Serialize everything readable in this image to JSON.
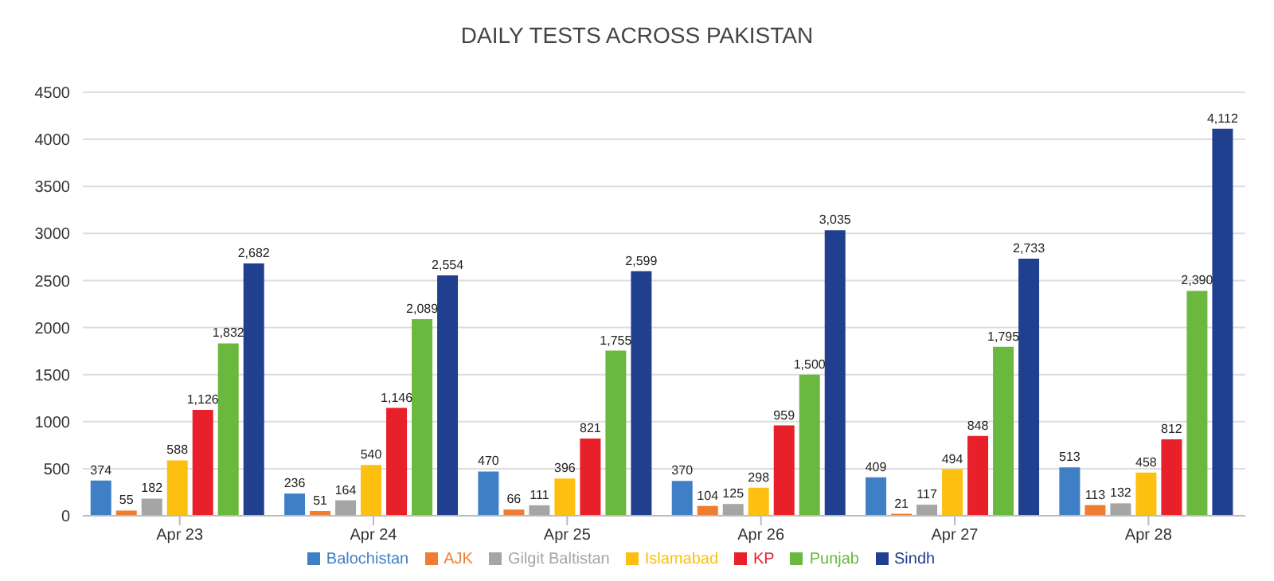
{
  "chart_data": {
    "type": "bar",
    "title": "DAILY TESTS ACROSS PAKISTAN",
    "categories": [
      "Apr 23",
      "Apr 24",
      "Apr 25",
      "Apr 26",
      "Apr 27",
      "Apr 28"
    ],
    "series": [
      {
        "name": "Balochistan",
        "color": "#3f7fc6",
        "values": [
          374,
          236,
          470,
          370,
          409,
          513
        ],
        "value_labels": [
          "374",
          "236",
          "470",
          "370",
          "409",
          "513"
        ]
      },
      {
        "name": "AJK",
        "color": "#ee7d31",
        "values": [
          55,
          51,
          66,
          104,
          21,
          113
        ],
        "value_labels": [
          "55",
          "51",
          "66",
          "104",
          "21",
          "113"
        ]
      },
      {
        "name": "Gilgit Baltistan",
        "color": "#a5a5a5",
        "values": [
          182,
          164,
          111,
          125,
          117,
          132
        ],
        "value_labels": [
          "182",
          "164",
          "111",
          "125",
          "117",
          "132"
        ]
      },
      {
        "name": "Islamabad",
        "color": "#fdc010",
        "values": [
          588,
          540,
          396,
          298,
          494,
          458
        ],
        "value_labels": [
          "588",
          "540",
          "396",
          "298",
          "494",
          "458"
        ]
      },
      {
        "name": "KP",
        "color": "#e8202a",
        "values": [
          1126,
          1146,
          821,
          959,
          848,
          812
        ],
        "value_labels": [
          "1,126",
          "1,146",
          "821",
          "959",
          "848",
          "812"
        ]
      },
      {
        "name": "Punjab",
        "color": "#6ab83d",
        "values": [
          1832,
          2089,
          1755,
          1500,
          1795,
          2390
        ],
        "value_labels": [
          "1,832",
          "2,089",
          "1,755",
          "1,500",
          "1,795",
          "2,390"
        ]
      },
      {
        "name": "Sindh",
        "color": "#213f8f",
        "values": [
          2682,
          2554,
          2599,
          3035,
          2733,
          4112
        ],
        "value_labels": [
          "2,682",
          "2,554",
          "2,599",
          "3,035",
          "2,733",
          "4,112"
        ]
      }
    ],
    "ylim": [
      0,
      4500
    ],
    "yticks": [
      0,
      500,
      1000,
      1500,
      2000,
      2500,
      3000,
      3500,
      4000,
      4500
    ],
    "grid": "y",
    "legend": "bottom"
  }
}
